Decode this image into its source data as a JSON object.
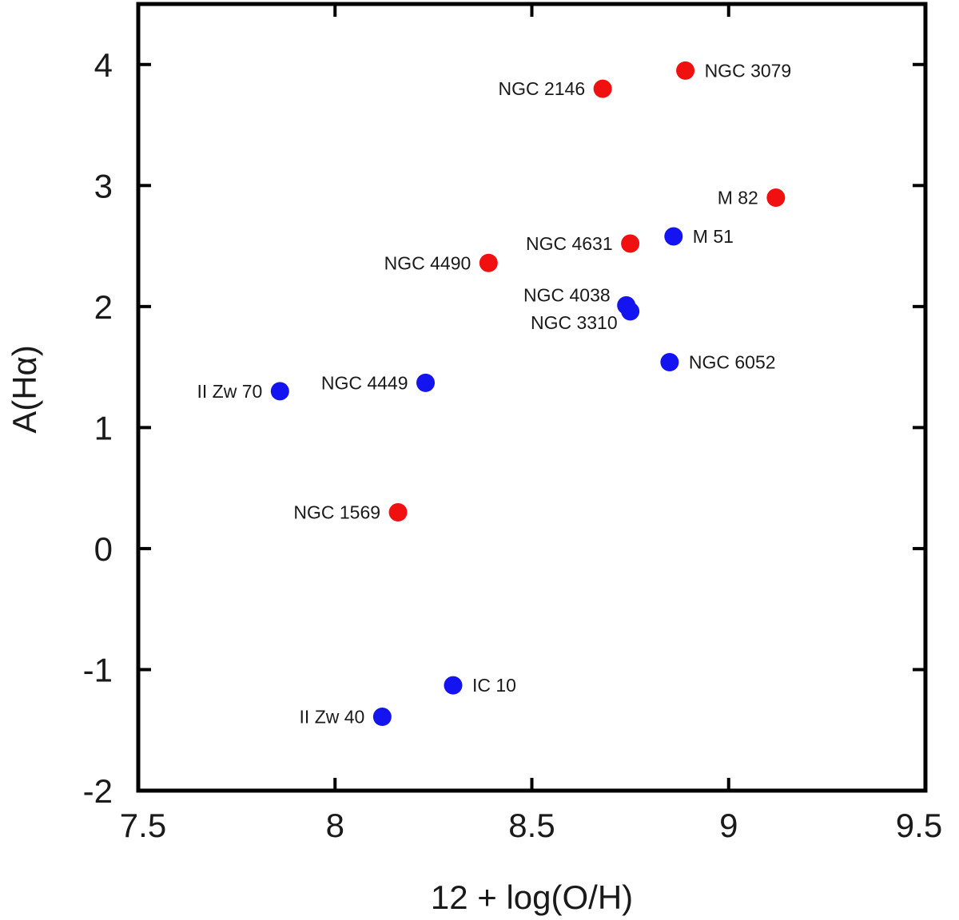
{
  "chart_data": {
    "type": "scatter",
    "title": "",
    "xlabel": "12 + log(O/H)",
    "ylabel": "A(Hα)",
    "xlim": [
      7.5,
      9.5
    ],
    "ylim": [
      -2,
      4.5
    ],
    "x_ticks": [
      7.5,
      8,
      8.5,
      9,
      9.5
    ],
    "x_tick_labels": [
      "7.5",
      "8",
      "8.5",
      "9",
      "9.5"
    ],
    "y_ticks": [
      -2,
      -1,
      0,
      1,
      2,
      3,
      4
    ],
    "y_tick_labels": [
      "-2",
      "-1",
      "0",
      "1",
      "2",
      "3",
      "4"
    ],
    "grid": false,
    "legend": "none",
    "colors": {
      "red": "#f01010",
      "blue": "#1414f0",
      "axis": "#000000"
    },
    "series": [
      {
        "color": "red",
        "points": [
          {
            "label": "NGC 3079",
            "x": 8.89,
            "y": 3.95,
            "label_side": "right"
          },
          {
            "label": "NGC 2146",
            "x": 8.68,
            "y": 3.8,
            "label_side": "left"
          },
          {
            "label": "M 82",
            "x": 9.12,
            "y": 2.9,
            "label_side": "left"
          },
          {
            "label": "NGC 4631",
            "x": 8.75,
            "y": 2.52,
            "label_side": "left"
          },
          {
            "label": "NGC 4490",
            "x": 8.39,
            "y": 2.36,
            "label_side": "left"
          },
          {
            "label": "NGC 1569",
            "x": 8.16,
            "y": 0.3,
            "label_side": "left"
          }
        ]
      },
      {
        "color": "blue",
        "points": [
          {
            "label": "M 51",
            "x": 8.86,
            "y": 2.58,
            "label_side": "right"
          },
          {
            "label": "NGC 4038",
            "x": 8.74,
            "y": 2.01,
            "label_side": "upper-left"
          },
          {
            "label": "NGC 3310",
            "x": 8.75,
            "y": 1.96,
            "label_side": "lower-left"
          },
          {
            "label": "NGC 6052",
            "x": 8.85,
            "y": 1.54,
            "label_side": "right"
          },
          {
            "label": "NGC 4449",
            "x": 8.23,
            "y": 1.37,
            "label_side": "left"
          },
          {
            "label": "II Zw 70",
            "x": 7.86,
            "y": 1.3,
            "label_side": "left"
          },
          {
            "label": "IC 10",
            "x": 8.3,
            "y": -1.13,
            "label_side": "right"
          },
          {
            "label": "II Zw 40",
            "x": 8.12,
            "y": -1.39,
            "label_side": "left"
          }
        ]
      }
    ]
  }
}
